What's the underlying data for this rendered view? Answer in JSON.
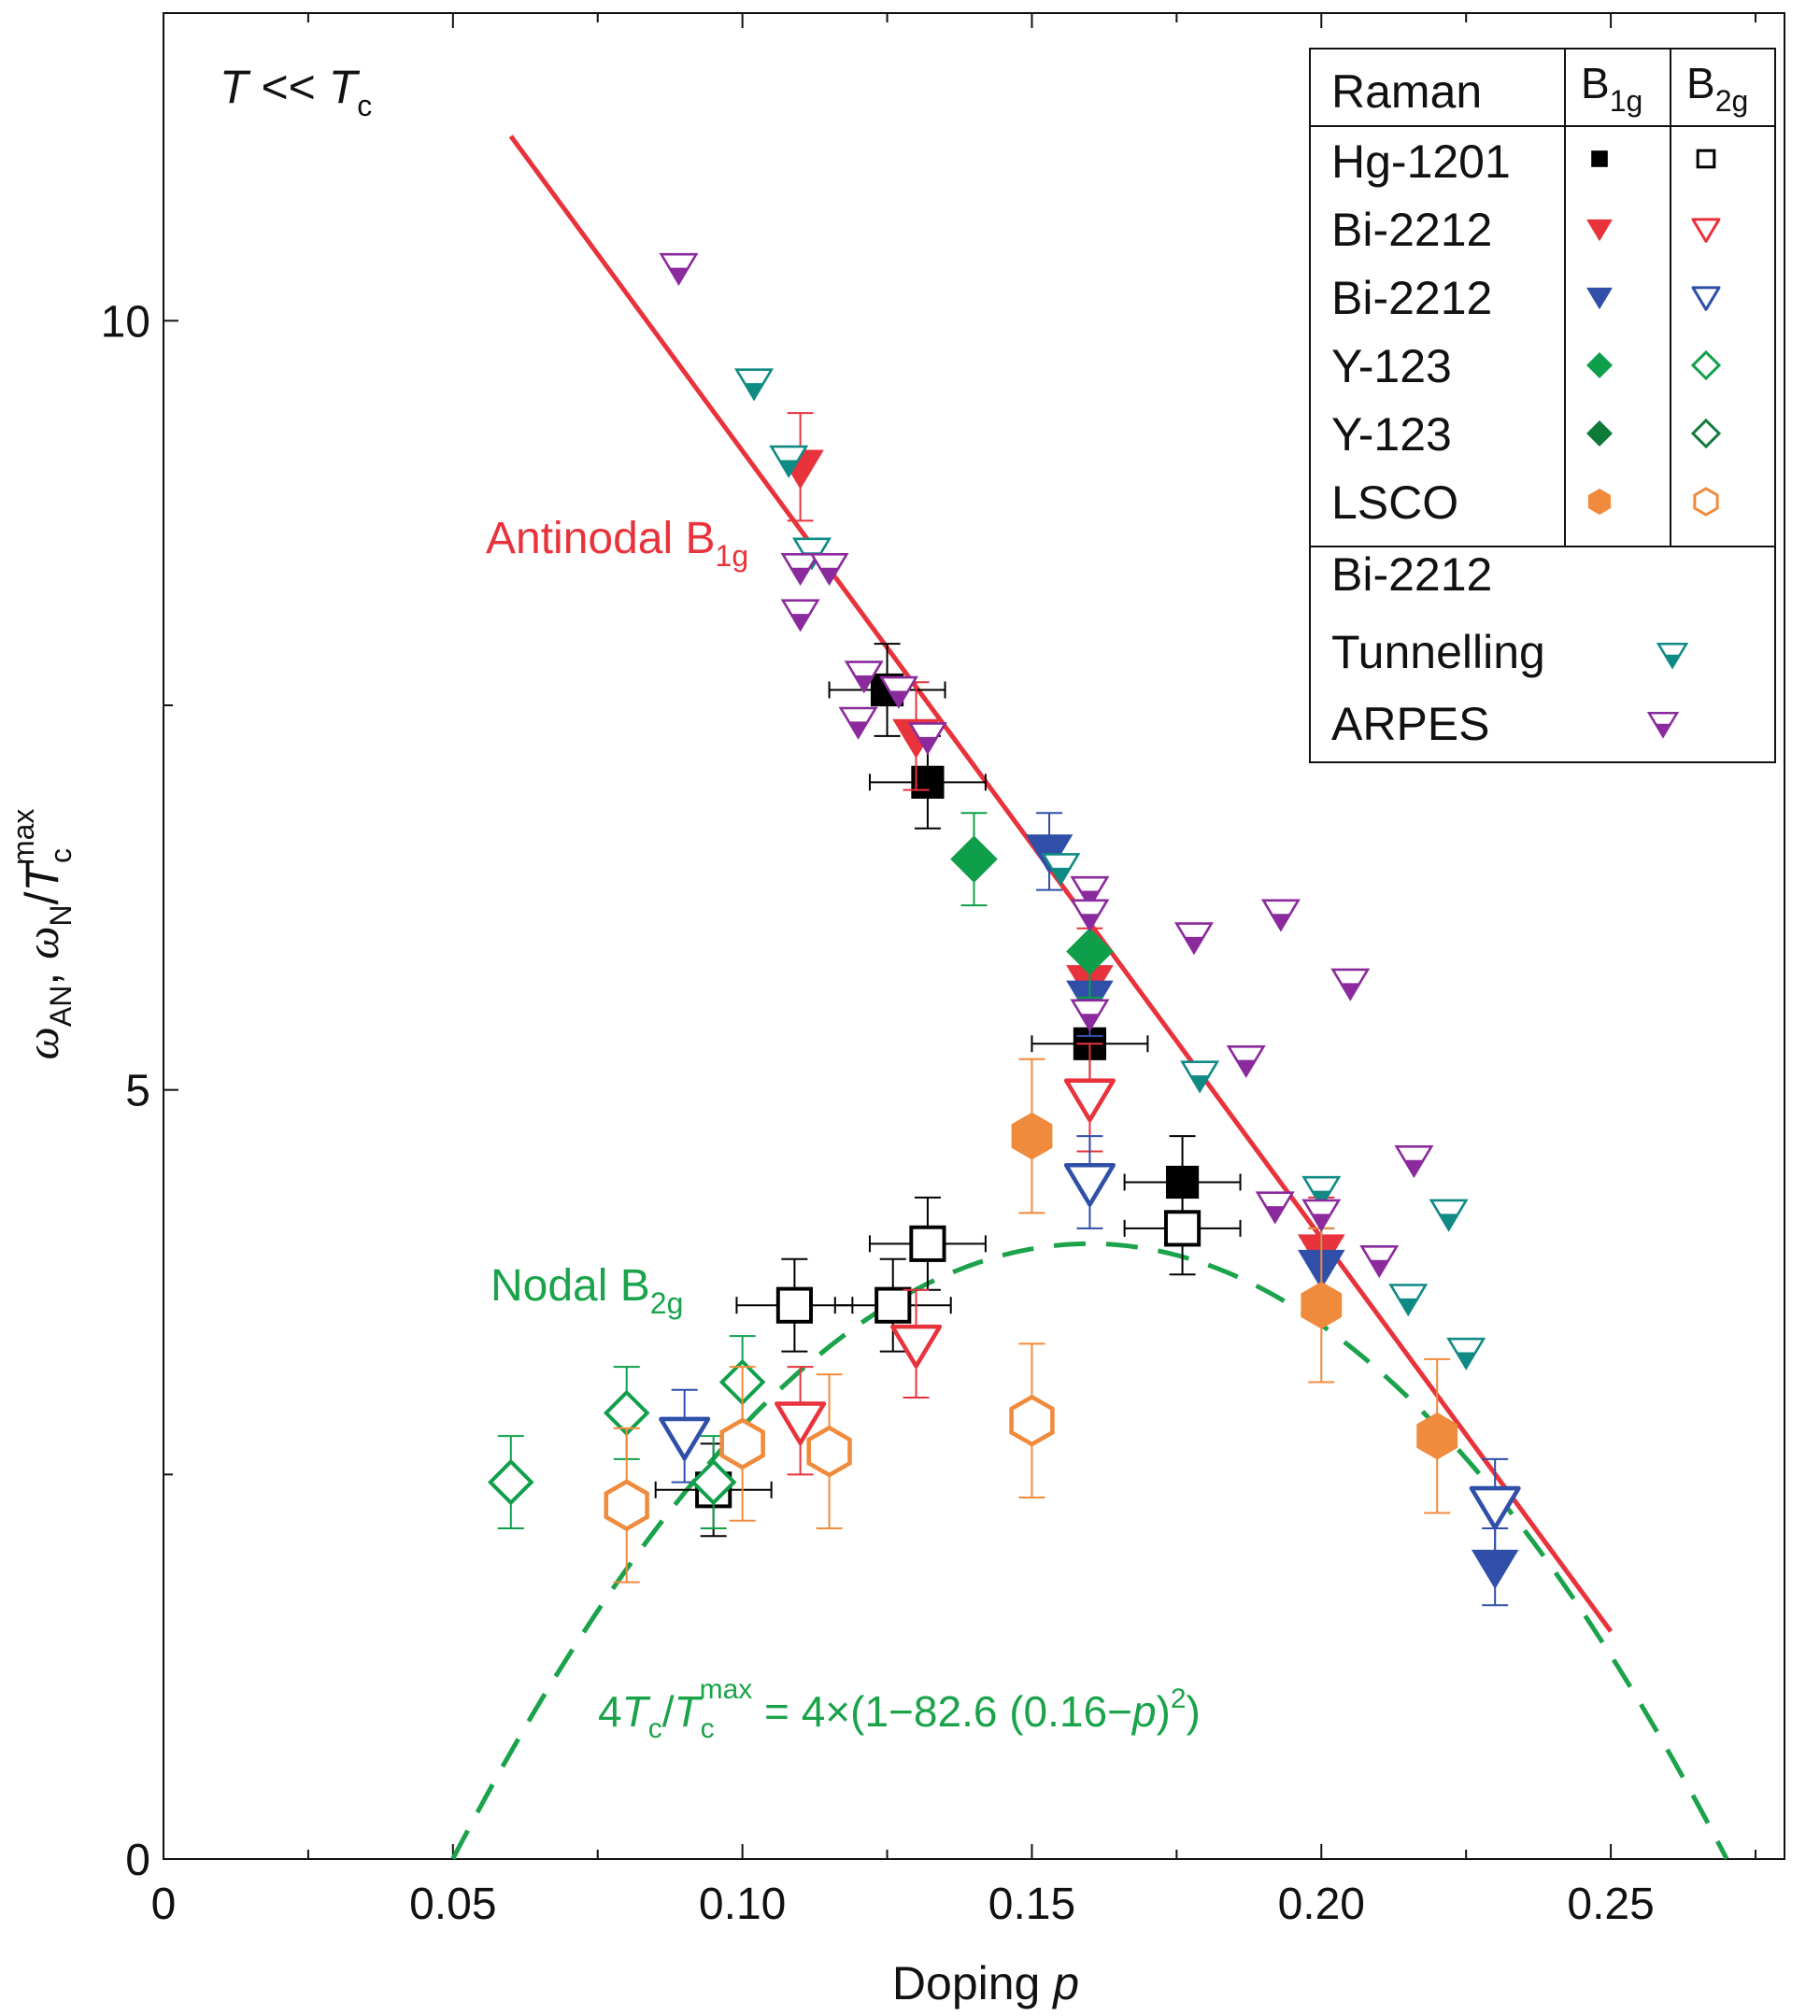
{
  "chart_data": {
    "type": "scatter",
    "title": "",
    "condition": {
      "main": "T",
      "rel": " << ",
      "sub_main": "T",
      "sub": "c"
    },
    "xlabel": {
      "text": "Doping ",
      "var": "p"
    },
    "ylabel": {
      "omega": "ω",
      "an": "AN",
      "comma": ", ",
      "n": "N",
      "slash": "/",
      "T": "T",
      "c": "c",
      "max": "max"
    },
    "xlim": [
      0,
      0.28
    ],
    "ylim": [
      0,
      12
    ],
    "x_ticks": [
      {
        "value": 0,
        "label": "0"
      },
      {
        "value": 0.05,
        "label": "0.05"
      },
      {
        "value": 0.1,
        "label": "0.10"
      },
      {
        "value": 0.15,
        "label": "0.15"
      },
      {
        "value": 0.2,
        "label": "0.20"
      },
      {
        "value": 0.25,
        "label": "0.25"
      }
    ],
    "x_minor_ticks": [
      0.025,
      0.075,
      0.125,
      0.175,
      0.225,
      0.275
    ],
    "y_ticks": [
      {
        "value": 0,
        "label": "0"
      },
      {
        "value": 5,
        "label": "5"
      },
      {
        "value": 10,
        "label": "10"
      }
    ],
    "y_minor_ticks": [
      2.5,
      7.5
    ],
    "annotations": {
      "antinodal": {
        "main": "Antinodal B",
        "sub": "1g",
        "color": "#e8333c"
      },
      "nodal": {
        "main": "Nodal B",
        "sub": "2g",
        "color": "#1aa34a"
      },
      "formula": {
        "p1": "4",
        "T1": "T",
        "c1": "c",
        "slash": "/",
        "T2": "T",
        "c2": "c",
        "max": "max",
        "rest": " = 4×(1−82.6 (0.16−",
        "p": "p",
        "close": ")",
        "sq": "2",
        "end": ")",
        "color": "#1aa34a"
      }
    },
    "lines": {
      "antinodal_fit": {
        "x": [
          0.06,
          0.25
        ],
        "y": [
          11.2,
          1.48
        ],
        "color": "#e8333c"
      },
      "nodal_dome": {
        "formula": "4*(1-82.6*(0.16-p)^2)",
        "x_range": [
          0.05,
          0.27
        ],
        "color": "#1aa34a"
      }
    },
    "legend": {
      "header": {
        "raman": "Raman",
        "b1g_main": "B",
        "b1g_sub": "1g",
        "b2g_main": "B",
        "b2g_sub": "2g"
      },
      "rows": [
        {
          "label": "Hg-1201",
          "shape": "square",
          "color": "#000000"
        },
        {
          "label": "Bi-2212",
          "shape": "tri",
          "color": "#e8333c"
        },
        {
          "label": "Bi-2212",
          "shape": "tri",
          "color": "#2f4fa8"
        },
        {
          "label": "Y-123",
          "shape": "diamond",
          "color": "#0f9f4a"
        },
        {
          "label": "Y-123",
          "shape": "diamond",
          "color": "#0d7a3a"
        },
        {
          "label": "LSCO",
          "shape": "hex",
          "color": "#f08a3c"
        }
      ],
      "other_header": "Bi-2212",
      "others": [
        {
          "label": "Tunnelling",
          "shape": "tri",
          "color": "#0f8a84"
        },
        {
          "label": "ARPES",
          "shape": "tri",
          "color": "#8b2a9c"
        }
      ]
    },
    "colors": {
      "hg": "#000000",
      "bi_red": "#e8333c",
      "bi_blue": "#2f4fa8",
      "y_green": "#0f9f4a",
      "y_dark": "#0d7a3a",
      "lsco": "#f08a3c",
      "tunnel": "#0f8a84",
      "arpes": "#8b2a9c"
    },
    "series": [
      {
        "name": "Hg-1201 B1g",
        "shape": "square",
        "fill": true,
        "color": "#000000",
        "size": 1,
        "points": [
          {
            "x": 0.125,
            "y": 7.6,
            "xerr": 0.01,
            "yerr": 0.3
          },
          {
            "x": 0.132,
            "y": 7.0,
            "xerr": 0.01,
            "yerr": 0.3
          },
          {
            "x": 0.16,
            "y": 5.3,
            "xerr": 0.01,
            "yerr": 0.3
          },
          {
            "x": 0.176,
            "y": 4.4,
            "xerr": 0.01,
            "yerr": 0.3
          }
        ]
      },
      {
        "name": "Hg-1201 B2g",
        "shape": "square",
        "fill": false,
        "color": "#000000",
        "size": 1,
        "points": [
          {
            "x": 0.109,
            "y": 3.6,
            "xerr": 0.01,
            "yerr": 0.3
          },
          {
            "x": 0.126,
            "y": 3.6,
            "xerr": 0.01,
            "yerr": 0.3
          },
          {
            "x": 0.132,
            "y": 4.0,
            "xerr": 0.01,
            "yerr": 0.3
          },
          {
            "x": 0.176,
            "y": 4.1,
            "xerr": 0.01,
            "yerr": 0.3
          },
          {
            "x": 0.095,
            "y": 2.4,
            "xerr": 0.01,
            "yerr": 0.3
          }
        ]
      },
      {
        "name": "Bi-2212 B1g red",
        "shape": "tri",
        "fill": true,
        "color": "#e8333c",
        "size": 1.15,
        "points": [
          {
            "x": 0.11,
            "y": 9.05,
            "yerr": 0.35
          },
          {
            "x": 0.13,
            "y": 7.3,
            "yerr": 0.35
          },
          {
            "x": 0.16,
            "y": 5.7,
            "yerr": 0.35
          },
          {
            "x": 0.2,
            "y": 3.95,
            "yerr": 0.35
          }
        ]
      },
      {
        "name": "Bi-2212 B2g red",
        "shape": "tri",
        "fill": false,
        "color": "#e8333c",
        "size": 1.15,
        "points": [
          {
            "x": 0.11,
            "y": 2.85,
            "yerr": 0.35
          },
          {
            "x": 0.13,
            "y": 3.35,
            "yerr": 0.35
          },
          {
            "x": 0.16,
            "y": 4.95,
            "yerr": 0.35
          }
        ]
      },
      {
        "name": "Bi-2212 B1g blue",
        "shape": "tri",
        "fill": true,
        "color": "#2f4fa8",
        "size": 1.15,
        "points": [
          {
            "x": 0.153,
            "y": 6.55,
            "yerr": 0.25
          },
          {
            "x": 0.16,
            "y": 5.6,
            "yerr": 0.25
          },
          {
            "x": 0.2,
            "y": 3.85,
            "yerr": 0.25
          },
          {
            "x": 0.23,
            "y": 1.9,
            "yerr": 0.25
          }
        ]
      },
      {
        "name": "Bi-2212 B2g blue",
        "shape": "tri",
        "fill": false,
        "color": "#2f4fa8",
        "size": 1.15,
        "points": [
          {
            "x": 0.09,
            "y": 2.75,
            "yerr": 0.3
          },
          {
            "x": 0.16,
            "y": 4.4,
            "yerr": 0.3
          },
          {
            "x": 0.23,
            "y": 2.3,
            "yerr": 0.3
          }
        ]
      },
      {
        "name": "Y-123 B1g",
        "shape": "diamond",
        "fill": true,
        "color": "#0f9f4a",
        "size": 1.15,
        "points": [
          {
            "x": 0.14,
            "y": 6.5,
            "yerr": 0.3
          },
          {
            "x": 0.16,
            "y": 5.9,
            "yerr": 0.3
          }
        ]
      },
      {
        "name": "Y-123 B2g",
        "shape": "diamond",
        "fill": false,
        "color": "#0f9f4a",
        "size": 1,
        "points": [
          {
            "x": 0.06,
            "y": 2.45,
            "yerr": 0.3
          },
          {
            "x": 0.08,
            "y": 2.9,
            "yerr": 0.3
          },
          {
            "x": 0.095,
            "y": 2.45,
            "yerr": 0.3
          },
          {
            "x": 0.1,
            "y": 3.1,
            "yerr": 0.3
          }
        ]
      },
      {
        "name": "LSCO B1g",
        "shape": "hex",
        "fill": true,
        "color": "#f08a3c",
        "size": 1.15,
        "points": [
          {
            "x": 0.15,
            "y": 4.7,
            "yerr": 0.5
          },
          {
            "x": 0.2,
            "y": 3.6,
            "yerr": 0.5
          },
          {
            "x": 0.22,
            "y": 2.75,
            "yerr": 0.5
          }
        ]
      },
      {
        "name": "LSCO B2g",
        "shape": "hex",
        "fill": false,
        "color": "#f08a3c",
        "size": 1.15,
        "points": [
          {
            "x": 0.08,
            "y": 2.3,
            "yerr": 0.5
          },
          {
            "x": 0.1,
            "y": 2.7,
            "yerr": 0.5
          },
          {
            "x": 0.115,
            "y": 2.65,
            "yerr": 0.5
          },
          {
            "x": 0.15,
            "y": 2.85,
            "yerr": 0.5
          }
        ]
      },
      {
        "name": "Tunnelling",
        "shape": "tri",
        "fill": "half",
        "color": "#0f8a84",
        "size": 0.85,
        "points": [
          {
            "x": 0.102,
            "y": 9.6
          },
          {
            "x": 0.108,
            "y": 9.1
          },
          {
            "x": 0.112,
            "y": 8.5
          },
          {
            "x": 0.155,
            "y": 6.45
          },
          {
            "x": 0.179,
            "y": 5.1
          },
          {
            "x": 0.2,
            "y": 4.35
          },
          {
            "x": 0.215,
            "y": 3.65
          },
          {
            "x": 0.222,
            "y": 4.2
          },
          {
            "x": 0.225,
            "y": 3.3
          }
        ]
      },
      {
        "name": "ARPES",
        "shape": "tri",
        "fill": "half",
        "color": "#8b2a9c",
        "size": 0.85,
        "points": [
          {
            "x": 0.089,
            "y": 10.35
          },
          {
            "x": 0.11,
            "y": 8.4
          },
          {
            "x": 0.115,
            "y": 8.4
          },
          {
            "x": 0.11,
            "y": 8.1
          },
          {
            "x": 0.121,
            "y": 7.7
          },
          {
            "x": 0.12,
            "y": 7.4
          },
          {
            "x": 0.127,
            "y": 7.6
          },
          {
            "x": 0.132,
            "y": 7.3
          },
          {
            "x": 0.16,
            "y": 6.3
          },
          {
            "x": 0.16,
            "y": 6.15
          },
          {
            "x": 0.16,
            "y": 5.5
          },
          {
            "x": 0.178,
            "y": 6.0
          },
          {
            "x": 0.193,
            "y": 6.15
          },
          {
            "x": 0.187,
            "y": 5.2
          },
          {
            "x": 0.205,
            "y": 5.7
          },
          {
            "x": 0.192,
            "y": 4.25
          },
          {
            "x": 0.2,
            "y": 4.2
          },
          {
            "x": 0.216,
            "y": 4.55
          },
          {
            "x": 0.21,
            "y": 3.9
          }
        ]
      }
    ]
  }
}
